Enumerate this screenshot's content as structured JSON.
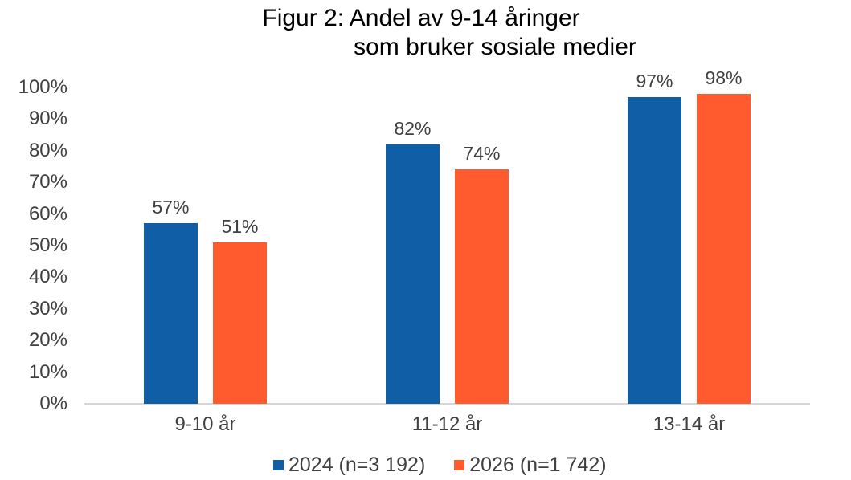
{
  "chart_data": {
    "type": "bar",
    "title": "Figur 2: Andel av 9-14 åringer som bruker sosiale medier",
    "title_lines": [
      "Figur 2: Andel av 9-14 åringer",
      "som bruker sosiale medier"
    ],
    "categories": [
      "9-10 år",
      "11-12 år",
      "13-14 år"
    ],
    "series": [
      {
        "name": "2024 (n=3 192)",
        "color": "#0f5ea6",
        "values": [
          57,
          82,
          97
        ],
        "labels": [
          "57%",
          "82%",
          "97%"
        ]
      },
      {
        "name": "2026 (n=1 742)",
        "color": "#ff5b2e",
        "values": [
          51,
          74,
          98
        ],
        "labels": [
          "51%",
          "74%",
          "98%"
        ]
      }
    ],
    "yticks": [
      "0%",
      "10%",
      "20%",
      "30%",
      "40%",
      "50%",
      "60%",
      "70%",
      "80%",
      "90%",
      "100%"
    ],
    "ylim": [
      0,
      100
    ],
    "xlabel": "",
    "ylabel": "",
    "grid": false,
    "legend_position": "bottom",
    "colors": {
      "axis_line": "#d6d6d6",
      "tick_text": "#404040",
      "data_label_text": "#404040",
      "title_text": "#000000"
    }
  }
}
